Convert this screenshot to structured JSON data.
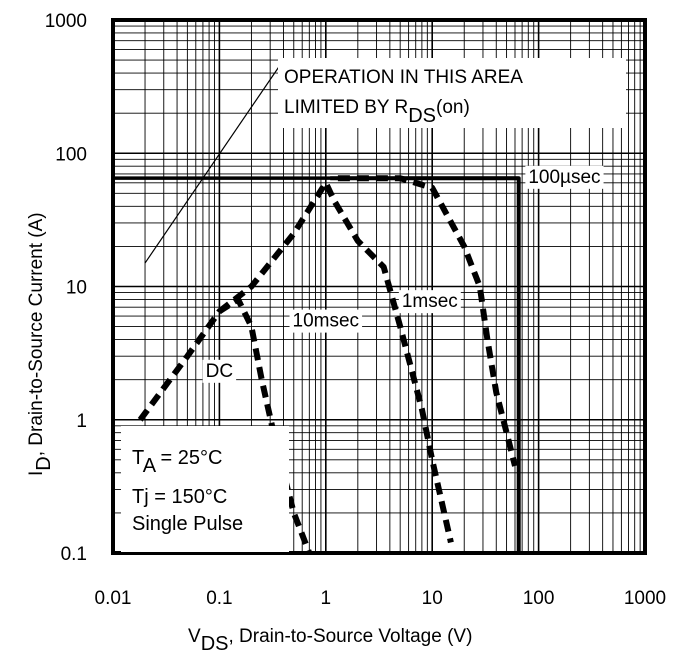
{
  "chart_data": {
    "type": "line",
    "x_scale": "log",
    "y_scale": "log",
    "xlim": [
      0.01,
      1000
    ],
    "ylim": [
      0.1,
      1000
    ],
    "grid": true,
    "x_ticks": [
      "0.01",
      "0.1",
      "1",
      "10",
      "100",
      "1000"
    ],
    "y_ticks": [
      "0.1",
      "1",
      "10",
      "100",
      "1000"
    ],
    "xlabel": {
      "main": "V",
      "sub": "DS",
      "rest": ", Drain-to-Source Voltage (V)"
    },
    "ylabel": {
      "main": "I",
      "sub": "D",
      "rest": ",  Drain-to-Source Current (A)"
    },
    "annotation_area": {
      "line1": "OPERATION IN THIS AREA",
      "line2_main": "LIMITED BY R",
      "line2_sub": "DS",
      "line2_rest": "(on)"
    },
    "conditions": {
      "ta_main": "T",
      "ta_sub": "A",
      "ta_rest": " = 25°C",
      "tj": "Tj = 150°C",
      "pulse": "Single Pulse"
    },
    "current_limit": 65,
    "voltage_limit": 65,
    "rds_line": [
      [
        0.02,
        15
      ],
      [
        0.4,
        500
      ]
    ],
    "series": [
      {
        "name": "100µsec",
        "style": "solid",
        "points": [
          [
            1.1,
            65
          ],
          [
            65,
            65
          ],
          [
            65,
            0.1
          ]
        ]
      },
      {
        "name": "1msec",
        "style": "dashed",
        "points": [
          [
            1.3,
            65
          ],
          [
            5,
            65
          ],
          [
            10,
            55
          ],
          [
            20,
            20
          ],
          [
            28,
            10
          ],
          [
            33,
            4
          ],
          [
            40,
            1.6
          ],
          [
            50,
            0.8
          ],
          [
            60,
            0.45
          ]
        ]
      },
      {
        "name": "10msec",
        "style": "dashed",
        "points": [
          [
            0.1,
            6.5
          ],
          [
            0.2,
            10
          ],
          [
            0.5,
            25
          ],
          [
            1.0,
            60
          ],
          [
            1.2,
            44
          ],
          [
            2,
            22
          ],
          [
            3.5,
            14
          ],
          [
            5,
            5
          ],
          [
            8,
            1.2
          ],
          [
            10,
            0.5
          ],
          [
            15,
            0.12
          ]
        ]
      },
      {
        "name": "DC",
        "style": "dashed",
        "points": [
          [
            0.018,
            1.0
          ],
          [
            0.05,
            3
          ],
          [
            0.1,
            6.5
          ],
          [
            0.15,
            8
          ],
          [
            0.2,
            5
          ],
          [
            0.25,
            2
          ],
          [
            0.35,
            0.6
          ],
          [
            0.5,
            0.2
          ],
          [
            0.7,
            0.1
          ]
        ]
      }
    ],
    "series_labels": [
      {
        "name": "100µsec",
        "x": 175,
        "y": 60
      },
      {
        "name": "1msec",
        "x": 9.5,
        "y": 7
      },
      {
        "name": "10msec",
        "x": 1.0,
        "y": 5
      },
      {
        "name": "DC",
        "x": 0.1,
        "y": 2.1
      }
    ]
  }
}
